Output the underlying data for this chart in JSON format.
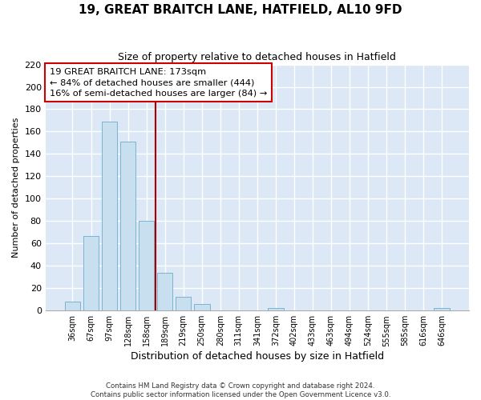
{
  "title": "19, GREAT BRAITCH LANE, HATFIELD, AL10 9FD",
  "subtitle": "Size of property relative to detached houses in Hatfield",
  "xlabel": "Distribution of detached houses by size in Hatfield",
  "ylabel": "Number of detached properties",
  "bar_labels": [
    "36sqm",
    "67sqm",
    "97sqm",
    "128sqm",
    "158sqm",
    "189sqm",
    "219sqm",
    "250sqm",
    "280sqm",
    "311sqm",
    "341sqm",
    "372sqm",
    "402sqm",
    "433sqm",
    "463sqm",
    "494sqm",
    "524sqm",
    "555sqm",
    "585sqm",
    "616sqm",
    "646sqm"
  ],
  "bar_values": [
    8,
    67,
    169,
    151,
    80,
    34,
    12,
    6,
    0,
    0,
    0,
    2,
    0,
    0,
    0,
    0,
    0,
    0,
    0,
    0,
    2
  ],
  "bar_color": "#c8dff0",
  "bar_edge_color": "#7ab4d0",
  "vline_x": 4.5,
  "vline_color": "#aa0000",
  "ylim": [
    0,
    220
  ],
  "yticks": [
    0,
    20,
    40,
    60,
    80,
    100,
    120,
    140,
    160,
    180,
    200,
    220
  ],
  "legend_title": "19 GREAT BRAITCH LANE: 173sqm",
  "legend_line1": "← 84% of detached houses are smaller (444)",
  "legend_line2": "16% of semi-detached houses are larger (84) →",
  "legend_box_color": "#ffffff",
  "legend_box_edge": "#cc0000",
  "footer_line1": "Contains HM Land Registry data © Crown copyright and database right 2024.",
  "footer_line2": "Contains public sector information licensed under the Open Government Licence v3.0.",
  "fig_bg_color": "#ffffff",
  "plot_bg_color": "#dce8f5",
  "grid_color": "#ffffff",
  "title_fontsize": 11,
  "subtitle_fontsize": 9
}
